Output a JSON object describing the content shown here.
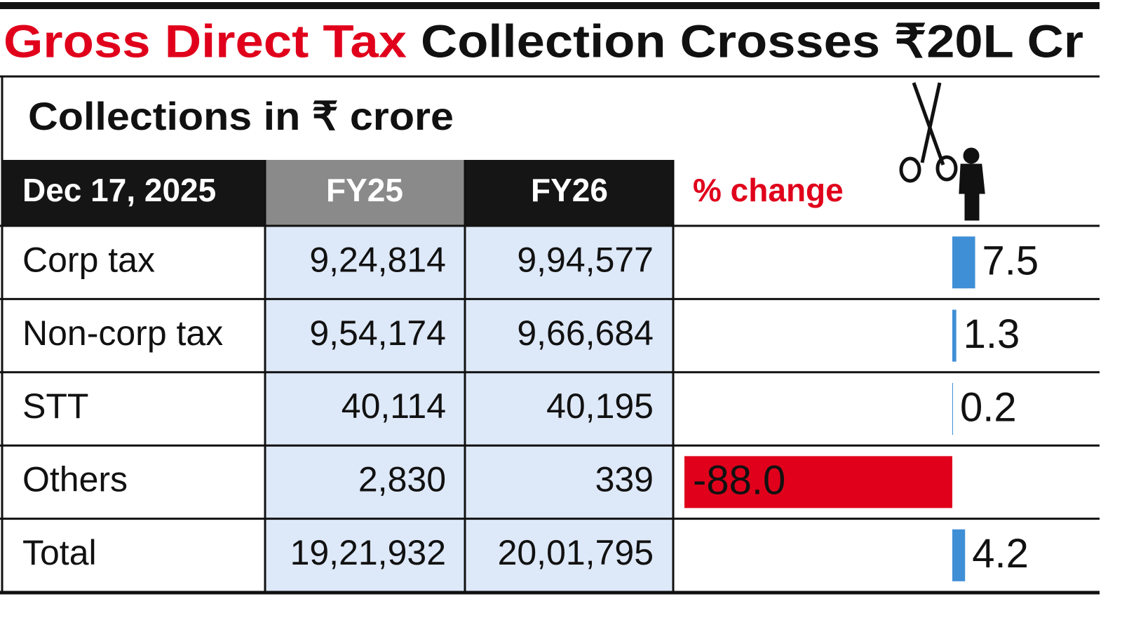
{
  "header": {
    "title": [
      "Gross Direct Tax",
      "Collection Crosses ₹20L Cr"
    ],
    "subtitle": "Collections in ₹ crore"
  },
  "table": {
    "columns": [
      "Dec 17, 2025",
      "FY25",
      "FY26",
      "% change"
    ],
    "rows": [
      [
        "Corp tax",
        "9,24,814",
        "9,94,577"
      ],
      [
        "Non-corp tax",
        "9,54,174",
        "9,66,684"
      ],
      [
        "STT",
        "40,114",
        "40,195"
      ],
      [
        "Others",
        "2,830",
        "339"
      ],
      [
        "Total",
        "19,21,932",
        "20,01,795"
      ]
    ]
  },
  "chart_data": {
    "type": "bar",
    "values": [
      7.5,
      1.3,
      0.2,
      -88.0
    ],
    "value_labels": [
      "7.5",
      "1.3",
      "0.2",
      "-88.0"
    ],
    "total": 4.2,
    "total_label": "4.2",
    "positive_color": "#3f8fd6",
    "negative_color": "#e0001b"
  }
}
